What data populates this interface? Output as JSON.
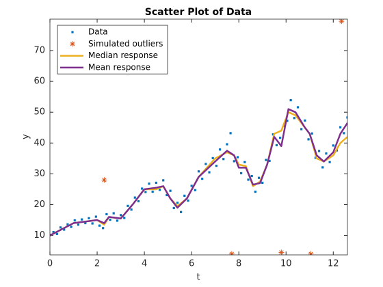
{
  "chart_data": {
    "type": "scatter",
    "title": "Scatter Plot of Data",
    "x_label": "t",
    "y_label": "y",
    "xlim": [
      0,
      12.6
    ],
    "ylim": [
      3.7,
      80.2
    ],
    "xticks": [
      0,
      2,
      4,
      6,
      8,
      10,
      12
    ],
    "yticks": [
      10,
      20,
      30,
      40,
      50,
      60,
      70
    ],
    "legend": "top-left",
    "series": [
      {
        "name": "Data",
        "style": "marker",
        "color": "#0072BD",
        "x": [
          0,
          0.15,
          0.3,
          0.45,
          0.6,
          0.75,
          0.9,
          1.05,
          1.2,
          1.35,
          1.5,
          1.65,
          1.8,
          1.95,
          2.1,
          2.25,
          2.4,
          2.55,
          2.7,
          2.85,
          3,
          3.15,
          3.3,
          3.45,
          3.6,
          3.75,
          3.9,
          4.05,
          4.2,
          4.35,
          4.5,
          4.65,
          4.8,
          4.95,
          5.1,
          5.25,
          5.4,
          5.55,
          5.7,
          5.85,
          6,
          6.15,
          6.3,
          6.45,
          6.6,
          6.75,
          6.9,
          7.05,
          7.2,
          7.35,
          7.5,
          7.65,
          7.8,
          7.95,
          8.1,
          8.25,
          8.4,
          8.55,
          8.7,
          8.85,
          9,
          9.15,
          9.3,
          9.45,
          9.6,
          9.75,
          9.9,
          10.05,
          10.2,
          10.35,
          10.5,
          10.65,
          10.8,
          10.95,
          11.1,
          11.25,
          11.4,
          11.55,
          11.7,
          11.85,
          12,
          12.15,
          12.3,
          12.45,
          12.6
        ],
        "values": [
          10.2,
          11.1,
          10.5,
          12.6,
          11.9,
          13.6,
          12.8,
          14.9,
          13.5,
          15.2,
          14.0,
          15.6,
          13.9,
          16.1,
          13.2,
          12.4,
          16.9,
          15.1,
          17.2,
          14.8,
          16.6,
          15.7,
          19.6,
          18.4,
          22.3,
          21.1,
          25.2,
          24.1,
          26.8,
          24.2,
          27.1,
          24.8,
          27.9,
          23.1,
          24.5,
          18.9,
          20.6,
          17.6,
          22.9,
          21.3,
          26.1,
          24.7,
          30.8,
          28.4,
          33.2,
          30.5,
          35.1,
          32.6,
          37.9,
          34.8,
          39.6,
          43.2,
          34.1,
          35.4,
          30.2,
          33.8,
          28.1,
          29.3,
          24.2,
          28.7,
          27.1,
          34.5,
          34.2,
          42.8,
          39.3,
          41.7,
          45.6,
          47.2,
          53.9,
          48.1,
          51.6,
          44.5,
          47.3,
          41.2,
          43.1,
          35.2,
          37.4,
          32.1,
          36.6,
          33.8,
          39.2,
          37.6,
          45.1,
          43.2,
          48.3
        ]
      },
      {
        "name": "Simulated outliers",
        "style": "asterisk",
        "color": "#D95319",
        "x": [
          2.3,
          7.7,
          9.8,
          11.05,
          12.35
        ],
        "values": [
          28,
          4,
          4.5,
          4,
          79.5
        ]
      },
      {
        "name": "Median response",
        "style": "line",
        "color": "#EDB120",
        "x": [
          0,
          0.5,
          1,
          1.5,
          2,
          2.3,
          2.5,
          3,
          3.5,
          4,
          4.5,
          4.8,
          5.1,
          5.4,
          5.8,
          6.3,
          7,
          7.5,
          7.8,
          8,
          8.3,
          8.6,
          8.9,
          9.2,
          9.5,
          9.8,
          10.1,
          10.4,
          10.8,
          11,
          11.3,
          11.6,
          12,
          12.3,
          12.6
        ],
        "values": [
          10,
          12,
          14,
          14.5,
          15,
          13.5,
          16,
          15.5,
          20,
          25,
          25,
          26,
          22,
          19.5,
          22,
          29,
          35,
          37,
          36,
          33,
          32.5,
          26,
          27.5,
          33,
          43,
          44,
          50,
          49,
          45,
          43,
          35,
          34,
          36,
          40,
          42
        ]
      },
      {
        "name": "Mean response",
        "style": "line",
        "color": "#7E2F8E",
        "x": [
          0,
          0.5,
          1,
          1.5,
          2,
          2.3,
          2.5,
          3,
          3.5,
          4,
          4.5,
          4.8,
          5.1,
          5.4,
          5.8,
          6.3,
          7,
          7.5,
          7.8,
          8,
          8.3,
          8.6,
          8.9,
          9.2,
          9.5,
          9.8,
          10.1,
          10.4,
          10.8,
          11,
          11.3,
          11.6,
          12,
          12.3,
          12.6
        ],
        "values": [
          10,
          12,
          14,
          14.5,
          15,
          14,
          16,
          15.5,
          20,
          25,
          25.5,
          26,
          22,
          19,
          22,
          29,
          34,
          37.5,
          36,
          32,
          32,
          26.5,
          27,
          33,
          42,
          39,
          51,
          50,
          45,
          43,
          36,
          34,
          37,
          43,
          46.5
        ]
      }
    ]
  }
}
